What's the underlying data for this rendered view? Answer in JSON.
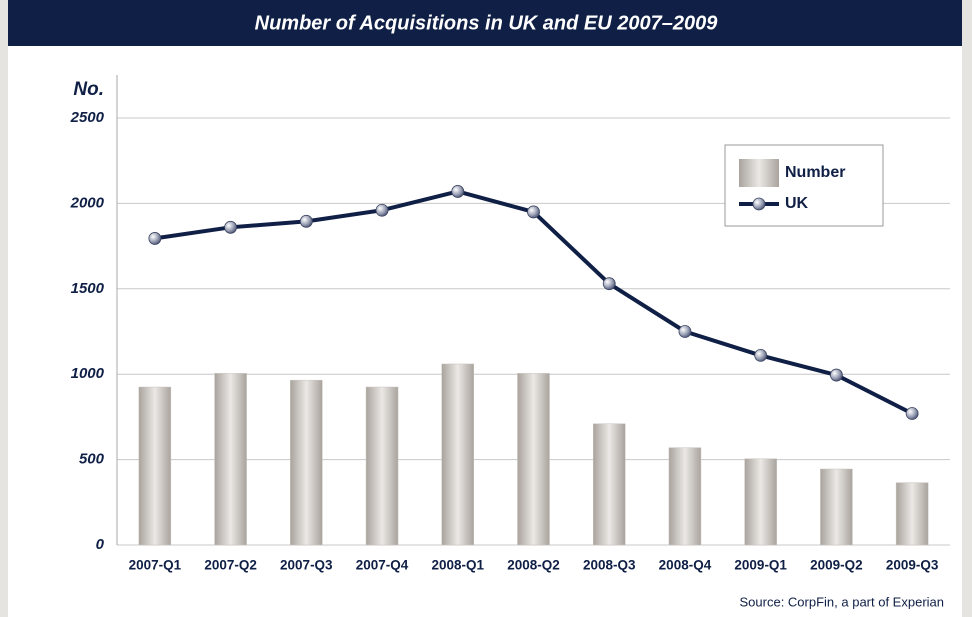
{
  "chart_data": {
    "type": "bar",
    "title": "Number of Acquisitions in UK and EU 2007–2009",
    "y_label": "No.",
    "source": "Source: CorpFin, a part of Experian",
    "categories": [
      "2007-Q1",
      "2007-Q2",
      "2007-Q3",
      "2007-Q4",
      "2008-Q1",
      "2008-Q2",
      "2008-Q3",
      "2008-Q4",
      "2009-Q1",
      "2009-Q2",
      "2009-Q3"
    ],
    "series": [
      {
        "name": "Number",
        "type": "bar",
        "color": "#c9c4bf",
        "values": [
          925,
          1005,
          965,
          925,
          1060,
          1005,
          710,
          570,
          505,
          445,
          365
        ]
      },
      {
        "name": "UK",
        "type": "line",
        "color": "#0f1f45",
        "values": [
          1795,
          1860,
          1895,
          1960,
          2070,
          1950,
          1530,
          1250,
          1110,
          995,
          770
        ]
      }
    ],
    "ylim": [
      0,
      2500
    ],
    "yticks": [
      0,
      500,
      1000,
      1500,
      2000,
      2500
    ],
    "grid": true,
    "legend": "top-right"
  }
}
